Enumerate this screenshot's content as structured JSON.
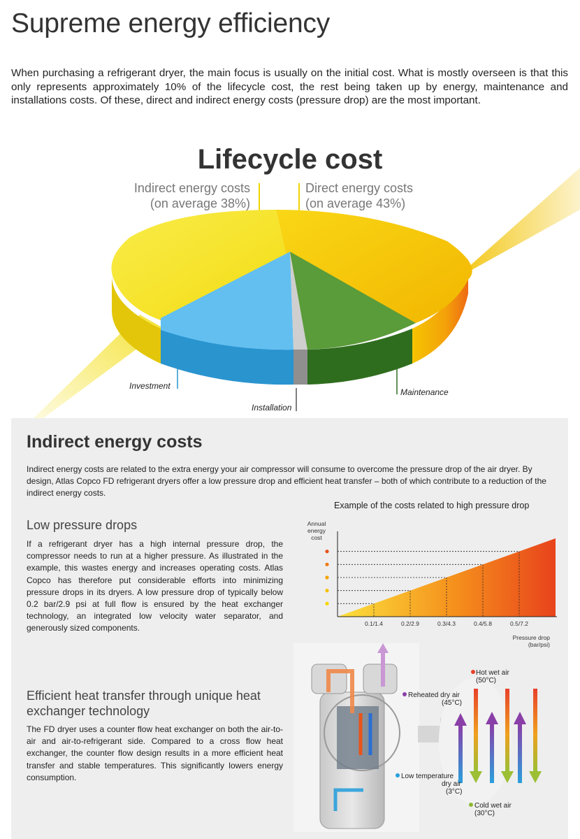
{
  "page": {
    "title": "Supreme energy efficiency",
    "intro": "When purchasing a refrigerant dryer, the main focus is usually on the initial cost. What is mostly overseen is that this only represents approximately 10% of the lifecycle cost, the rest being taken up by energy, maintenance and installations costs. Of these, direct and indirect energy costs (pressure drop) are the most important."
  },
  "lifecycle": {
    "title": "Lifecycle cost",
    "indirect_line1": "Indirect energy costs",
    "indirect_line2": "(on average 38%)",
    "direct_line1": "Direct energy costs",
    "direct_line2": "(on average 43%)",
    "slices": {
      "investment": "Investment",
      "installation": "Installation",
      "maintenance": "Maintenance"
    },
    "colors": {
      "direct": "#f2c200",
      "indirect": "#f7e21a",
      "investment": "#4db2e8",
      "installation": "#b5b5b5",
      "maintenance": "#4f8f32"
    }
  },
  "indirect_section": {
    "title": "Indirect energy costs",
    "intro": "Indirect energy costs are related to the extra energy your air compressor will consume to overcome the pressure drop of the air dryer. By design, Atlas Copco FD refrigerant dryers offer a low pressure drop and efficient heat transfer – both of which contribute to a reduction of the indirect energy costs.",
    "low_pressure": {
      "title": "Low pressure drops",
      "text": "If a refrigerant dryer has a high internal pressure drop, the compressor needs to run at a higher pressure. As illustrated in the example, this wastes energy and increases operating costs. Atlas Copco has therefore put considerable efforts into minimizing pressure drops in its dryers. A low pressure drop of typically below 0.2 bar/2.9 psi at full flow is ensured by the heat exchanger technology, an integrated low velocity water separator, and generously sized components."
    },
    "heat_transfer": {
      "title": "Efficient heat transfer through unique heat exchanger technology",
      "text": "The FD dryer uses a counter flow heat exchanger on both the air-to-air and air-to-refrigerant side. Compared to a cross flow heat exchanger, the counter flow design results in a more efficient heat transfer and stable temperatures. This significantly lowers energy consumption."
    }
  },
  "chart_data": {
    "type": "area",
    "title": "Example of the costs related to high pressure drop",
    "ylabel_lines": [
      "Annual",
      "energy",
      "cost"
    ],
    "xlabel_lines": [
      "Pressure drop",
      "(bar/psi)"
    ],
    "categories": [
      "0.1/1.4",
      "0.2/2.9",
      "0.3/4.3",
      "0.4/5.8",
      "0.5/7.2"
    ],
    "x": [
      0.1,
      0.2,
      0.3,
      0.4,
      0.5
    ],
    "x_max": 0.6,
    "y": [
      1,
      2,
      3,
      4,
      5
    ],
    "y_max": 6,
    "grid": false,
    "marker_colors": [
      "#f7d400",
      "#f7c000",
      "#f4a200",
      "#f07b12",
      "#e8501a"
    ],
    "fill_colors": [
      "#fbe13b",
      "#f58e1c",
      "#e8431c"
    ]
  },
  "heat_exchanger": {
    "labels": {
      "hot_wet_line1": "Hot wet air",
      "hot_wet_line2": "(50°C)",
      "reheated_line1": "Reheated dry air",
      "reheated_line2": "(45°C)",
      "low_temp_line1": "Low temperature",
      "low_temp_line2": "dry air",
      "low_temp_line3": "(3°C)",
      "cold_wet_line1": "Cold wet air",
      "cold_wet_line2": "(30°C)"
    },
    "colors": {
      "hot": "#e8412a",
      "reheated": "#8a3fa8",
      "low_temp": "#2aa0dc",
      "cold": "#8cb833"
    }
  }
}
